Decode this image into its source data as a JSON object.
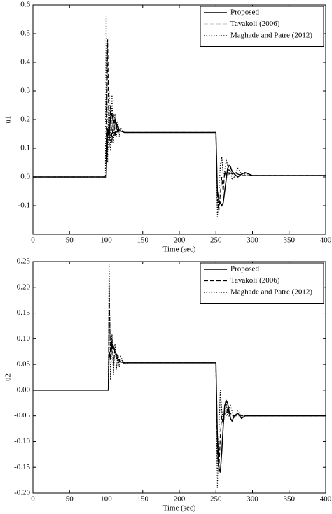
{
  "chart_data": [
    {
      "type": "line",
      "xlabel": "Time (sec)",
      "ylabel": "u1",
      "legend": "upper right",
      "grid": false,
      "xlim": [
        0,
        400
      ],
      "xticks": [
        0,
        50,
        100,
        150,
        200,
        250,
        300,
        350,
        400
      ],
      "ylim": [
        -0.2,
        0.6
      ],
      "yticks": [
        0.6,
        0.5,
        0.4,
        0.3,
        0.2,
        0.1,
        {
          "value": 0,
          "label": "0.0"
        },
        -0.1
      ],
      "x": [
        0,
        99,
        100,
        102,
        104,
        106,
        108,
        110,
        112,
        114,
        116,
        118,
        120,
        125,
        130,
        140,
        150,
        250,
        252,
        254,
        256,
        258,
        260,
        262,
        264,
        266,
        268,
        270,
        272,
        275,
        280,
        285,
        290,
        295,
        300,
        320,
        350,
        400
      ],
      "series": [
        {
          "name": "Proposed",
          "color": "#000000",
          "style": "solid",
          "values": [
            0,
            0,
            0,
            0.17,
            0.14,
            0.21,
            0.22,
            0.19,
            0.2,
            0.17,
            0.18,
            0.16,
            0.16,
            0.155,
            0.155,
            0.155,
            0.155,
            0.155,
            -0.05,
            -0.08,
            -0.09,
            -0.1,
            -0.09,
            -0.05,
            -0.01,
            0.03,
            0.04,
            0.035,
            0.02,
            0.01,
            0,
            0.01,
            0.015,
            0.01,
            0.005,
            0.005,
            0.005,
            0.005
          ]
        },
        {
          "name": "Tavakoli (2006)",
          "color": "#000000",
          "style": "dashed",
          "values": [
            0,
            0,
            0,
            0.48,
            0.1,
            0.25,
            0.12,
            0.22,
            0.14,
            0.19,
            0.15,
            0.17,
            0.16,
            0.155,
            0.155,
            0.155,
            0.155,
            0.155,
            -0.07,
            -0.12,
            -0.06,
            0,
            -0.05,
            0.02,
            0,
            0.03,
            0.01,
            0.02,
            0.01,
            0.015,
            0.01,
            0.005,
            0.005,
            0.005,
            0.005,
            0.005,
            0.005,
            0.005
          ]
        },
        {
          "name": "Maghade and Patre (2012)",
          "color": "#000000",
          "style": "dotted",
          "values": [
            0,
            0,
            0.56,
            0.05,
            0.3,
            0.09,
            0.29,
            0.12,
            0.22,
            0.14,
            0.2,
            0.14,
            0.17,
            0.155,
            0.155,
            0.155,
            0.155,
            0.155,
            -0.14,
            -0.06,
            0.04,
            0.07,
            0.01,
            0.02,
            0.06,
            0.04,
            0.02,
            0.03,
            -0.01,
            0,
            0.03,
            0.01,
            0.01,
            0.005,
            0.005,
            0.005,
            0.005,
            0.005
          ]
        }
      ]
    },
    {
      "type": "line",
      "xlabel": "Time (sec)",
      "ylabel": "u2",
      "legend": "upper right",
      "grid": false,
      "xlim": [
        0,
        400
      ],
      "xticks": [
        0,
        50,
        100,
        150,
        200,
        250,
        300,
        350,
        400
      ],
      "ylim": [
        -0.2,
        0.25
      ],
      "yticks": [
        0.25,
        {
          "value": 0.2,
          "label": "0.20"
        },
        0.15,
        {
          "value": 0.1,
          "label": "0.10"
        },
        0.05,
        {
          "value": 0,
          "label": "0.00"
        },
        -0.05,
        {
          "value": -0.1,
          "label": "-0.10"
        },
        -0.15,
        {
          "value": -0.2,
          "label": "-0.20"
        }
      ],
      "x": [
        0,
        103,
        104,
        106,
        108,
        110,
        112,
        114,
        116,
        118,
        120,
        125,
        130,
        140,
        150,
        250,
        252,
        254,
        256,
        258,
        260,
        262,
        264,
        266,
        268,
        270,
        272,
        275,
        280,
        285,
        290,
        295,
        300,
        320,
        350,
        400
      ],
      "series": [
        {
          "name": "Proposed",
          "color": "#000000",
          "style": "solid",
          "values": [
            0,
            0,
            0.075,
            0.06,
            0.09,
            0.085,
            0.075,
            0.07,
            0.06,
            0.06,
            0.055,
            0.053,
            0.053,
            0.053,
            0.053,
            0.053,
            -0.09,
            -0.15,
            -0.16,
            -0.12,
            -0.07,
            -0.03,
            -0.02,
            -0.025,
            -0.04,
            -0.055,
            -0.06,
            -0.05,
            -0.045,
            -0.055,
            -0.05,
            -0.05,
            -0.05,
            -0.05,
            -0.05,
            -0.05
          ]
        },
        {
          "name": "Tavakoli (2006)",
          "color": "#000000",
          "style": "dashed",
          "values": [
            0,
            0,
            0.2,
            0.06,
            0.1,
            0.05,
            0.08,
            0.06,
            0.07,
            0.055,
            0.06,
            0.053,
            0.053,
            0.053,
            0.053,
            0.053,
            -0.12,
            -0.16,
            -0.09,
            -0.05,
            -0.07,
            -0.04,
            -0.05,
            -0.035,
            -0.05,
            -0.045,
            -0.05,
            -0.05,
            -0.05,
            -0.05,
            -0.05,
            -0.05,
            -0.05,
            -0.05,
            -0.05,
            -0.05
          ]
        },
        {
          "name": "Maghade and Patre (2012)",
          "color": "#000000",
          "style": "dotted",
          "values": [
            0,
            0,
            0.245,
            0.02,
            0.11,
            0.03,
            0.09,
            0.04,
            0.07,
            0.045,
            0.065,
            0.05,
            0.053,
            0.053,
            0.053,
            0.053,
            -0.19,
            -0.09,
            0,
            -0.04,
            -0.06,
            -0.04,
            -0.02,
            -0.05,
            -0.035,
            -0.03,
            -0.04,
            -0.055,
            -0.04,
            -0.05,
            -0.05,
            -0.05,
            -0.05,
            -0.05,
            -0.05,
            -0.05
          ]
        }
      ]
    }
  ]
}
